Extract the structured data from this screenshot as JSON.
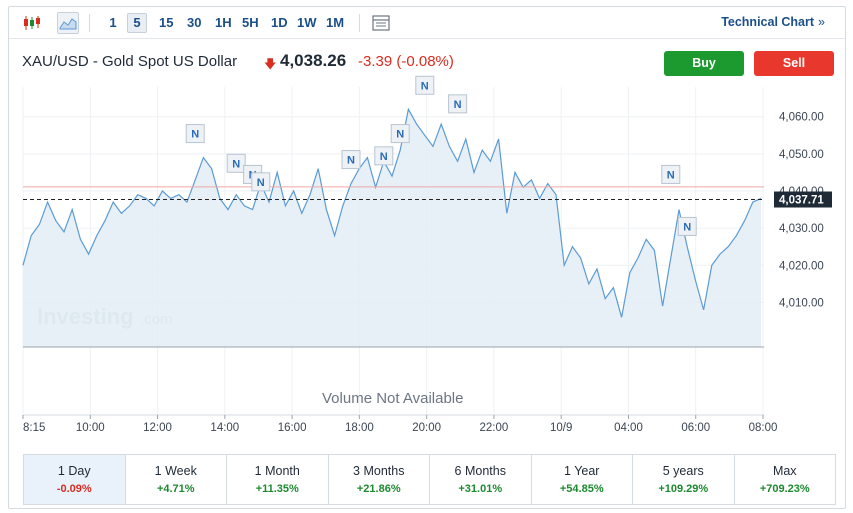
{
  "toolbar": {
    "chart_types": [
      "candlestick-chart-icon",
      "area-chart-icon"
    ],
    "timeframes": [
      "1",
      "5",
      "15",
      "30",
      "1H",
      "5H",
      "1D",
      "1W",
      "1M"
    ],
    "active_timeframe": "5",
    "layout_icon": "layout-icon",
    "technical_chart_label": "Technical Chart",
    "technical_chart_chevron": "»"
  },
  "instrument": {
    "name": "XAU/USD - Gold Spot US Dollar",
    "price": "4,038.26",
    "change": "-3.39 (-0.08%)",
    "direction_icon": "arrow-down-icon"
  },
  "actions": {
    "buy_label": "Buy",
    "sell_label": "Sell"
  },
  "colors": {
    "buy": "#1d9a2f",
    "sell": "#e8382e",
    "line": "#5b9bd5",
    "area": "#e3edf6",
    "down": "#d92d20",
    "up": "#1d8a2f",
    "link": "#1b4f8a"
  },
  "chart": {
    "watermark": "Investing",
    "watermark_suffix": ".com",
    "volume_text": "Volume Not Available",
    "current_price_label": "4,037.71",
    "news_marker_text": "N"
  },
  "chart_data": {
    "type": "area",
    "y_ticks": [
      4010,
      4020,
      4030,
      4040,
      4050,
      4060
    ],
    "y_tick_labels": [
      "4,010.00",
      "4,020.00",
      "4,030.00",
      "4,040.00",
      "4,050.00",
      "4,060.00"
    ],
    "ylim": [
      3998,
      4068
    ],
    "x_tick_labels": [
      "8:15",
      "10:00",
      "12:00",
      "14:00",
      "16:00",
      "18:00",
      "20:00",
      "22:00",
      "10/9",
      "04:00",
      "06:00",
      "08:00"
    ],
    "current_price": 4037.71,
    "reference_price": 4041.1,
    "grid": true,
    "series": [
      {
        "values": [
          4020,
          4028,
          4031,
          4037,
          4032,
          4029,
          4035,
          4027,
          4023,
          4028,
          4032,
          4037,
          4034,
          4036,
          4039,
          4038,
          4036,
          4040,
          4038,
          4039,
          4037,
          4043,
          4049,
          4046,
          4038,
          4035,
          4039,
          4036,
          4035,
          4042,
          4037,
          4045,
          4036,
          4040,
          4034,
          4039,
          4046,
          4035,
          4028,
          4036,
          4042,
          4046,
          4049,
          4041,
          4048,
          4044,
          4051,
          4062,
          4058,
          4055,
          4052,
          4058,
          4052,
          4048,
          4054,
          4045,
          4051,
          4048,
          4054,
          4034,
          4045,
          4041,
          4043,
          4038,
          4042,
          4039,
          4020,
          4025,
          4022,
          4015,
          4019,
          4011,
          4014,
          4006,
          4018,
          4022,
          4027,
          4024,
          4009,
          4022,
          4035,
          4025,
          4016,
          4008,
          4020,
          4023,
          4025,
          4028,
          4032,
          4037,
          4038
        ]
      }
    ],
    "news_markers": [
      {
        "label": "N",
        "price": 4049
      },
      {
        "label": "N",
        "price": 4041
      },
      {
        "label": "N",
        "price": 4038
      },
      {
        "label": "N",
        "price": 4036
      },
      {
        "label": "N",
        "price": 4042
      },
      {
        "label": "N",
        "price": 4043
      },
      {
        "label": "N",
        "price": 4049
      },
      {
        "label": "N",
        "price": 4062
      },
      {
        "label": "N",
        "price": 4057
      },
      {
        "label": "N",
        "price": 4038
      },
      {
        "label": "N",
        "price": 4024
      }
    ]
  },
  "periods": [
    {
      "label": "1 Day",
      "value": "-0.09%",
      "trend": "down",
      "active": true
    },
    {
      "label": "1 Week",
      "value": "+4.71%",
      "trend": "up",
      "active": false
    },
    {
      "label": "1 Month",
      "value": "+11.35%",
      "trend": "up",
      "active": false
    },
    {
      "label": "3 Months",
      "value": "+21.86%",
      "trend": "up",
      "active": false
    },
    {
      "label": "6 Months",
      "value": "+31.01%",
      "trend": "up",
      "active": false
    },
    {
      "label": "1 Year",
      "value": "+54.85%",
      "trend": "up",
      "active": false
    },
    {
      "label": "5 years",
      "value": "+109.29%",
      "trend": "up",
      "active": false
    },
    {
      "label": "Max",
      "value": "+709.23%",
      "trend": "up",
      "active": false
    }
  ]
}
